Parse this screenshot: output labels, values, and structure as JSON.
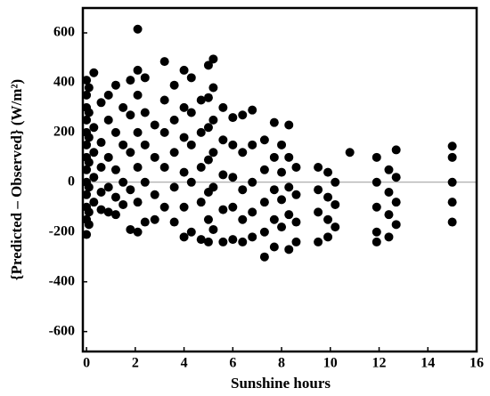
{
  "chart_data": {
    "type": "scatter",
    "x_label": "Sunshine hours",
    "y_label": "{Predicted – Observed} (W/m²)",
    "color": "#000000",
    "xlim": [
      -0.15,
      16
    ],
    "xticks": [
      0,
      2,
      4,
      6,
      8,
      10,
      12,
      14,
      16
    ],
    "ylim": [
      -680,
      700
    ],
    "yticks": [
      -600,
      -400,
      -200,
      0,
      200,
      400,
      600
    ],
    "x": [
      0,
      0,
      0,
      0,
      0,
      0,
      0,
      0,
      0,
      0,
      0,
      0,
      0,
      0.1,
      0.1,
      0.1,
      0.1,
      0.1,
      0.1,
      0.1,
      0.3,
      0.3,
      0.3,
      0.3,
      0.3,
      0.6,
      0.6,
      0.6,
      0.6,
      0.6,
      0.9,
      0.9,
      0.9,
      0.9,
      0.9,
      1.2,
      1.2,
      1.2,
      1.2,
      1.2,
      1.5,
      1.5,
      1.5,
      1.5,
      1.8,
      1.8,
      1.8,
      1.8,
      1.8,
      2.1,
      2.1,
      2.1,
      2.1,
      2.1,
      2.1,
      2.1,
      2.4,
      2.4,
      2.4,
      2.4,
      2.4,
      2.8,
      2.8,
      2.8,
      2.8,
      3.2,
      3.2,
      3.2,
      3.2,
      3.2,
      3.6,
      3.6,
      3.6,
      3.6,
      3.6,
      4.0,
      4.0,
      4.0,
      4.0,
      4.0,
      4.0,
      4.3,
      4.3,
      4.3,
      4.3,
      4.3,
      4.7,
      4.7,
      4.7,
      4.7,
      4.7,
      5.0,
      5.0,
      5.0,
      5.0,
      5.0,
      5.0,
      5.0,
      5.2,
      5.2,
      5.2,
      5.2,
      5.2,
      5.2,
      5.6,
      5.6,
      5.6,
      5.6,
      5.6,
      6.0,
      6.0,
      6.0,
      6.0,
      6.0,
      6.4,
      6.4,
      6.4,
      6.4,
      6.4,
      6.8,
      6.8,
      6.8,
      6.8,
      6.8,
      7.3,
      7.3,
      7.3,
      7.3,
      7.3,
      7.7,
      7.7,
      7.7,
      7.7,
      7.7,
      8.0,
      8.0,
      8.0,
      8.0,
      8.3,
      8.3,
      8.3,
      8.3,
      8.3,
      8.6,
      8.6,
      8.6,
      8.6,
      9.5,
      9.5,
      9.5,
      9.5,
      9.9,
      9.9,
      9.9,
      9.9,
      10.2,
      10.2,
      10.2,
      10.8,
      11.9,
      11.9,
      11.9,
      11.9,
      11.9,
      12.4,
      12.4,
      12.4,
      12.4,
      12.7,
      12.7,
      12.7,
      12.7,
      15.0,
      15.0,
      15.0,
      15.0,
      15.0
    ],
    "values": [
      410,
      350,
      300,
      250,
      200,
      150,
      100,
      50,
      0,
      -50,
      -100,
      -150,
      -210,
      380,
      280,
      180,
      80,
      -20,
      -120,
      -170,
      440,
      220,
      120,
      20,
      -80,
      320,
      160,
      60,
      -40,
      -110,
      350,
      250,
      100,
      -20,
      -120,
      390,
      200,
      50,
      -60,
      -130,
      300,
      150,
      0,
      -90,
      410,
      270,
      120,
      -30,
      -190,
      615,
      450,
      350,
      200,
      60,
      -80,
      -200,
      420,
      280,
      150,
      0,
      -160,
      230,
      100,
      -50,
      -150,
      485,
      330,
      200,
      60,
      -100,
      390,
      250,
      120,
      -20,
      -160,
      450,
      300,
      180,
      40,
      -100,
      -220,
      420,
      280,
      150,
      0,
      -200,
      330,
      200,
      60,
      -80,
      -230,
      470,
      340,
      220,
      90,
      -40,
      -150,
      -240,
      495,
      380,
      250,
      120,
      -20,
      -190,
      300,
      170,
      30,
      -110,
      -240,
      260,
      150,
      20,
      -100,
      -230,
      270,
      120,
      -30,
      -150,
      -240,
      290,
      150,
      0,
      -120,
      -220,
      170,
      50,
      -80,
      -200,
      -300,
      240,
      100,
      -30,
      -150,
      -260,
      150,
      40,
      -70,
      -180,
      230,
      100,
      -20,
      -130,
      -270,
      60,
      -50,
      -160,
      -240,
      60,
      -30,
      -120,
      -240,
      40,
      -60,
      -150,
      -220,
      0,
      -90,
      -180,
      120,
      100,
      0,
      -100,
      -200,
      -240,
      50,
      -40,
      -130,
      -220,
      130,
      20,
      -80,
      -170,
      145,
      100,
      0,
      -80,
      -160
    ]
  }
}
